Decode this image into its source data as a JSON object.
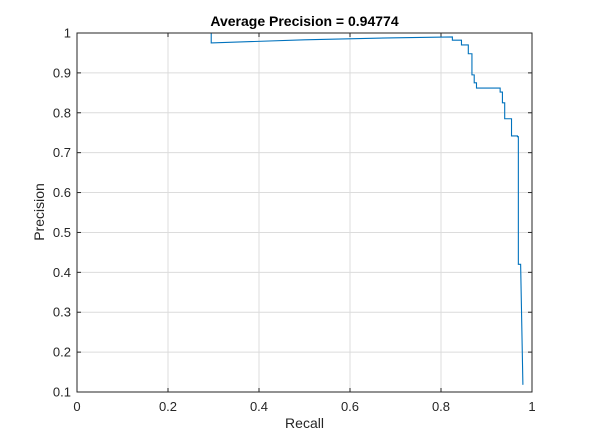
{
  "chart_data": {
    "type": "line",
    "title": "Average Precision = 0.94774",
    "xlabel": "Recall",
    "ylabel": "Precision",
    "xlim": [
      0,
      1
    ],
    "ylim": [
      0.1,
      1
    ],
    "xticks": [
      0,
      0.2,
      0.4,
      0.6,
      0.8,
      1
    ],
    "xtick_labels": [
      "0",
      "0.2",
      "0.4",
      "0.6",
      "0.8",
      "1"
    ],
    "yticks": [
      0.1,
      0.2,
      0.3,
      0.4,
      0.5,
      0.6,
      0.7,
      0.8,
      0.9,
      1
    ],
    "ytick_labels": [
      "0.1",
      "0.2",
      "0.3",
      "0.4",
      "0.5",
      "0.6",
      "0.7",
      "0.8",
      "0.9",
      "1"
    ],
    "grid": true,
    "legend": "none",
    "line_color": "#0072bd",
    "series": [
      {
        "x": [
          0,
          0.295,
          0.295,
          0.5,
          0.7,
          0.825,
          0.825,
          0.845,
          0.845,
          0.86,
          0.86,
          0.868,
          0.868,
          0.873,
          0.873,
          0.878,
          0.878,
          0.89,
          0.89,
          0.93,
          0.93,
          0.935,
          0.935,
          0.94,
          0.94,
          0.955,
          0.955,
          0.968,
          0.968,
          0.97,
          0.97,
          0.975,
          0.975,
          0.98
        ],
        "y": [
          1,
          1,
          0.975,
          0.983,
          0.988,
          0.99,
          0.982,
          0.982,
          0.97,
          0.97,
          0.948,
          0.948,
          0.895,
          0.895,
          0.875,
          0.875,
          0.862,
          0.862,
          0.862,
          0.862,
          0.852,
          0.852,
          0.825,
          0.825,
          0.785,
          0.785,
          0.742,
          0.742,
          0.74,
          0.74,
          0.42,
          0.42,
          0.42,
          0.118
        ]
      }
    ]
  }
}
